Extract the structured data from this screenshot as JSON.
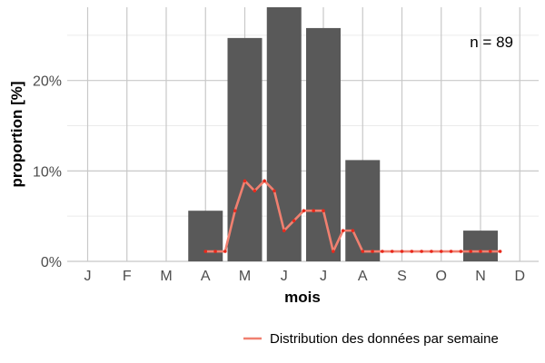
{
  "chart_data": {
    "type": "bar",
    "categories": [
      "J",
      "F",
      "M",
      "A",
      "M",
      "J",
      "J",
      "A",
      "S",
      "O",
      "N",
      "D"
    ],
    "values": [
      0,
      0,
      0,
      5.6,
      24.7,
      28.1,
      25.8,
      11.2,
      0,
      0,
      3.4,
      0
    ],
    "bar_color": "#595959",
    "xlabel": "mois",
    "ylabel": "proportion [%]",
    "yticks": [
      "0%",
      "10%",
      "20%"
    ],
    "ylim": [
      0,
      28.1
    ],
    "grid": true,
    "annotation": "n = 89",
    "legend_position": "bottom-right",
    "series": [
      {
        "name": "Distribution des données par semaine",
        "type": "line",
        "color": "#f08070",
        "point_color": "#e8291c",
        "x": [
          3.0,
          3.25,
          3.5,
          3.75,
          4.0,
          4.25,
          4.5,
          4.75,
          5.0,
          5.25,
          5.5,
          5.75,
          6.0,
          6.25,
          6.5,
          6.75,
          7.0,
          7.25,
          7.5,
          7.75,
          8.0,
          8.25,
          8.5,
          8.75,
          9.0,
          9.25,
          9.5,
          9.75,
          10.0,
          10.25,
          10.5
        ],
        "values": [
          1.1,
          1.1,
          1.1,
          5.6,
          8.9,
          7.8,
          8.9,
          7.8,
          3.4,
          4.5,
          5.6,
          5.6,
          5.6,
          1.1,
          3.4,
          3.4,
          1.1,
          1.1,
          1.1,
          1.1,
          1.1,
          1.1,
          1.1,
          1.1,
          1.1,
          1.1,
          1.1,
          1.1,
          1.1,
          1.1,
          1.1
        ]
      }
    ]
  }
}
